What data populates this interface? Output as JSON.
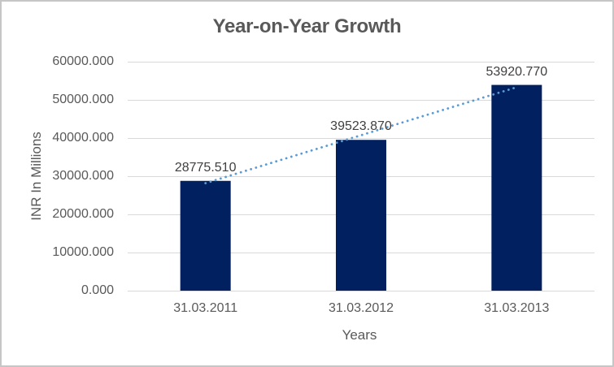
{
  "chart_data": {
    "type": "bar",
    "title": "Year-on-Year Growth",
    "categories": [
      "31.03.2011",
      "31.03.2012",
      "31.03.2013"
    ],
    "values": [
      28775.51,
      39523.87,
      53920.77
    ],
    "value_labels": [
      "28775.510",
      "39523.870",
      "53920.770"
    ],
    "xlabel": "Years",
    "ylabel": "INR In Millions",
    "ylim": [
      0,
      60000
    ],
    "ytick_step": 10000,
    "ytick_labels": [
      "0.000",
      "10000.000",
      "20000.000",
      "30000.000",
      "40000.000",
      "50000.000",
      "60000.000"
    ],
    "grid": true,
    "legend": "none",
    "trendline": {
      "type": "linear",
      "style": "dotted"
    },
    "colors": {
      "bar": "#002060",
      "trendline": "#5B9BD5",
      "gridline": "#D9D9D9",
      "title_text": "#595959",
      "axis_text": "#595959",
      "data_label_text": "#404040",
      "border": "#C6C6C6",
      "background": "#FFFFFF"
    }
  }
}
